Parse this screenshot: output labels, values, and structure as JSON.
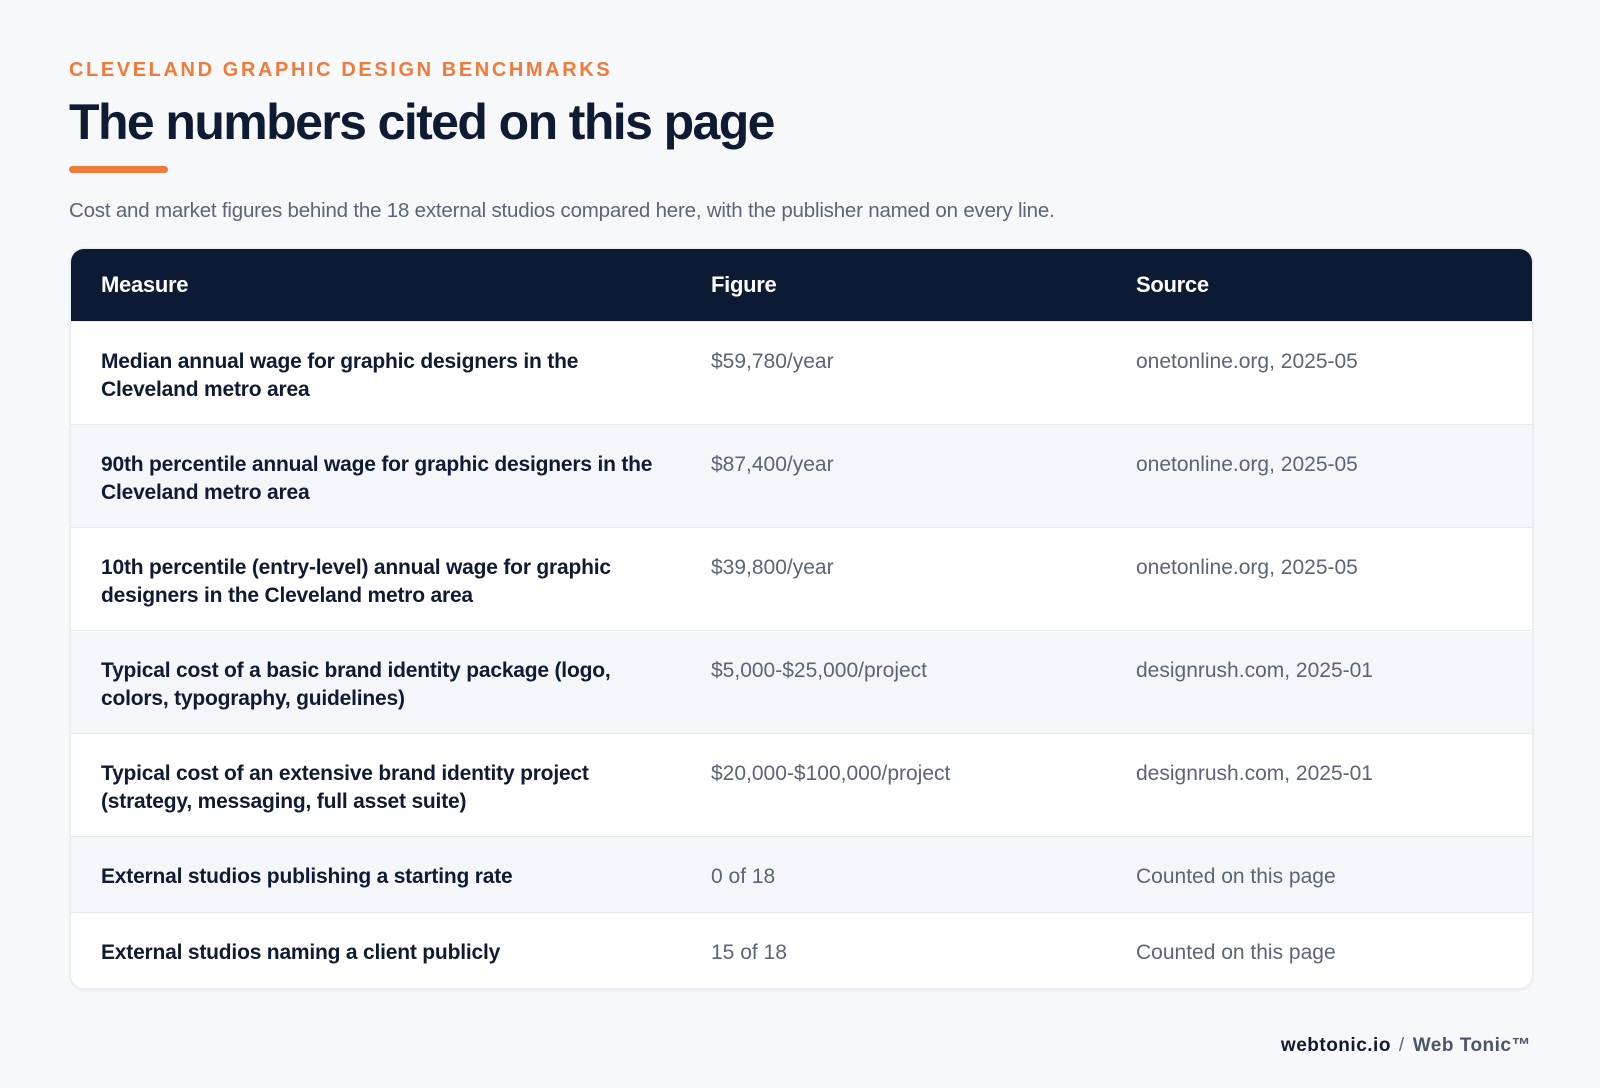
{
  "header": {
    "eyebrow": "CLEVELAND GRAPHIC DESIGN BENCHMARKS",
    "title": "The numbers cited on this page",
    "subtitle": "Cost and market figures behind the 18 external studios compared here, with the publisher named on every line.",
    "accent_color": "#f07a3a"
  },
  "table": {
    "columns": [
      "Measure",
      "Figure",
      "Source"
    ],
    "rows": [
      {
        "measure": "Median annual wage for graphic designers in the Cleveland metro area",
        "figure": "$59,780/year",
        "source": "onetonline.org, 2025-05"
      },
      {
        "measure": "90th percentile annual wage for graphic designers in the Cleveland metro area",
        "figure": "$87,400/year",
        "source": "onetonline.org, 2025-05"
      },
      {
        "measure": "10th percentile (entry-level) annual wage for graphic designers in the Cleveland metro area",
        "figure": "$39,800/year",
        "source": "onetonline.org, 2025-05"
      },
      {
        "measure": "Typical cost of a basic brand identity package (logo, colors, typography, guidelines)",
        "figure": "$5,000-$25,000/project",
        "source": "designrush.com, 2025-01"
      },
      {
        "measure": "Typical cost of an extensive brand identity project (strategy, messaging, full asset suite)",
        "figure": "$20,000-$100,000/project",
        "source": "designrush.com, 2025-01"
      },
      {
        "measure": "External studios publishing a starting rate",
        "figure": "0 of 18",
        "source": "Counted on this page"
      },
      {
        "measure": "External studios naming a client publicly",
        "figure": "15 of 18",
        "source": "Counted on this page"
      }
    ],
    "header_color": "#0d1a33"
  },
  "footer": {
    "domain": "webtonic.io",
    "separator": "/",
    "brand": "Web Tonic™"
  }
}
